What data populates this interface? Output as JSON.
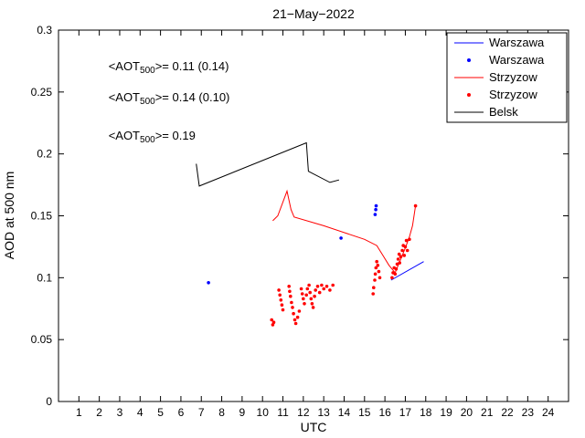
{
  "figure": {
    "background": "#ffffff"
  },
  "chart_data": {
    "type": "line",
    "title": "21−May−2022",
    "xlabel": "UTC",
    "ylabel": "AOD at 500 nm",
    "xlim": [
      0,
      25
    ],
    "ylim": [
      0,
      0.3
    ],
    "grid": false,
    "xticks": [
      1,
      2,
      3,
      4,
      5,
      6,
      7,
      8,
      9,
      10,
      11,
      12,
      13,
      14,
      15,
      16,
      17,
      18,
      19,
      20,
      21,
      22,
      23,
      24
    ],
    "yticks": [
      0,
      0.05,
      0.1,
      0.15,
      0.2,
      0.25,
      0.3
    ],
    "ytick_labels": [
      "0",
      "0.05",
      "0.1",
      "0.15",
      "0.2",
      "0.25",
      "0.3"
    ],
    "legend_position": "top-right",
    "legend": [
      {
        "label": "Warszawa",
        "marker": "line",
        "color": "#0000ff"
      },
      {
        "label": "Warszawa",
        "marker": "dot",
        "color": "#0000ff"
      },
      {
        "label": "Strzyzow",
        "marker": "line",
        "color": "#ff0000"
      },
      {
        "label": "Strzyzow",
        "marker": "dot",
        "color": "#ff0000"
      },
      {
        "label": "Belsk",
        "marker": "line",
        "color": "#000000"
      }
    ],
    "annotations": [
      {
        "pre": "<AOT",
        "sub": "500",
        "post": ">= 0.11 (0.14)",
        "color": "#0000ff",
        "x": 2.45,
        "y": 0.2675
      },
      {
        "pre": "<AOT",
        "sub": "500",
        "post": ">= 0.14 (0.10)",
        "color": "#ff0000",
        "x": 2.45,
        "y": 0.2425
      },
      {
        "pre": "<AOT",
        "sub": "500",
        "post": ">= 0.19",
        "color": "#000000",
        "x": 2.45,
        "y": 0.2115
      }
    ],
    "series": [
      {
        "name": "Warszawa",
        "type": "line",
        "color": "#0000ff",
        "points": [
          [
            16.3,
            0.098
          ],
          [
            17.9,
            0.113
          ]
        ]
      },
      {
        "name": "Warszawa",
        "type": "scatter",
        "color": "#0000ff",
        "points": [
          [
            7.35,
            0.096
          ],
          [
            13.85,
            0.132
          ],
          [
            15.52,
            0.151
          ],
          [
            15.55,
            0.155
          ],
          [
            15.57,
            0.158
          ]
        ]
      },
      {
        "name": "Strzyzow",
        "type": "line",
        "color": "#ff0000",
        "points": [
          [
            10.5,
            0.146
          ],
          [
            10.75,
            0.15
          ],
          [
            11.2,
            0.17
          ],
          [
            11.4,
            0.155
          ],
          [
            11.55,
            0.149
          ],
          [
            13.0,
            0.142
          ],
          [
            15.0,
            0.131
          ],
          [
            15.6,
            0.126
          ],
          [
            15.9,
            0.118
          ],
          [
            16.2,
            0.11
          ],
          [
            16.5,
            0.104
          ],
          [
            16.65,
            0.11
          ],
          [
            16.8,
            0.116
          ],
          [
            17.0,
            0.124
          ],
          [
            17.2,
            0.133
          ],
          [
            17.35,
            0.142
          ],
          [
            17.5,
            0.158
          ]
        ]
      },
      {
        "name": "Strzyzow",
        "type": "scatter",
        "color": "#ff0000",
        "points": [
          [
            10.45,
            0.066
          ],
          [
            10.5,
            0.062
          ],
          [
            10.55,
            0.064
          ],
          [
            10.8,
            0.09
          ],
          [
            10.85,
            0.086
          ],
          [
            10.9,
            0.082
          ],
          [
            10.95,
            0.078
          ],
          [
            11.0,
            0.074
          ],
          [
            11.3,
            0.093
          ],
          [
            11.33,
            0.089
          ],
          [
            11.37,
            0.085
          ],
          [
            11.42,
            0.08
          ],
          [
            11.47,
            0.076
          ],
          [
            11.52,
            0.071
          ],
          [
            11.58,
            0.066
          ],
          [
            11.63,
            0.063
          ],
          [
            11.72,
            0.068
          ],
          [
            11.8,
            0.073
          ],
          [
            11.9,
            0.091
          ],
          [
            11.95,
            0.087
          ],
          [
            12.0,
            0.083
          ],
          [
            12.05,
            0.079
          ],
          [
            12.15,
            0.086
          ],
          [
            12.2,
            0.091
          ],
          [
            12.28,
            0.094
          ],
          [
            12.33,
            0.088
          ],
          [
            12.38,
            0.083
          ],
          [
            12.43,
            0.079
          ],
          [
            12.48,
            0.076
          ],
          [
            12.55,
            0.085
          ],
          [
            12.6,
            0.09
          ],
          [
            12.7,
            0.093
          ],
          [
            12.8,
            0.088
          ],
          [
            12.9,
            0.094
          ],
          [
            13.0,
            0.091
          ],
          [
            13.15,
            0.093
          ],
          [
            13.3,
            0.09
          ],
          [
            13.45,
            0.094
          ],
          [
            15.42,
            0.087
          ],
          [
            15.45,
            0.092
          ],
          [
            15.5,
            0.098
          ],
          [
            15.53,
            0.103
          ],
          [
            15.56,
            0.108
          ],
          [
            15.6,
            0.113
          ],
          [
            15.65,
            0.11
          ],
          [
            15.7,
            0.105
          ],
          [
            15.75,
            0.1
          ],
          [
            16.35,
            0.1
          ],
          [
            16.4,
            0.104
          ],
          [
            16.45,
            0.108
          ],
          [
            16.5,
            0.103
          ],
          [
            16.55,
            0.107
          ],
          [
            16.6,
            0.111
          ],
          [
            16.65,
            0.115
          ],
          [
            16.7,
            0.119
          ],
          [
            16.72,
            0.112
          ],
          [
            16.78,
            0.117
          ],
          [
            16.85,
            0.122
          ],
          [
            16.9,
            0.126
          ],
          [
            16.95,
            0.118
          ],
          [
            17.0,
            0.125
          ],
          [
            17.05,
            0.13
          ],
          [
            17.1,
            0.122
          ],
          [
            17.2,
            0.131
          ],
          [
            17.5,
            0.158
          ]
        ]
      },
      {
        "name": "Belsk",
        "type": "line",
        "color": "#000000",
        "points": [
          [
            6.75,
            0.192
          ],
          [
            6.9,
            0.174
          ],
          [
            12.15,
            0.209
          ],
          [
            12.25,
            0.186
          ],
          [
            13.3,
            0.177
          ],
          [
            13.75,
            0.179
          ]
        ]
      }
    ]
  }
}
